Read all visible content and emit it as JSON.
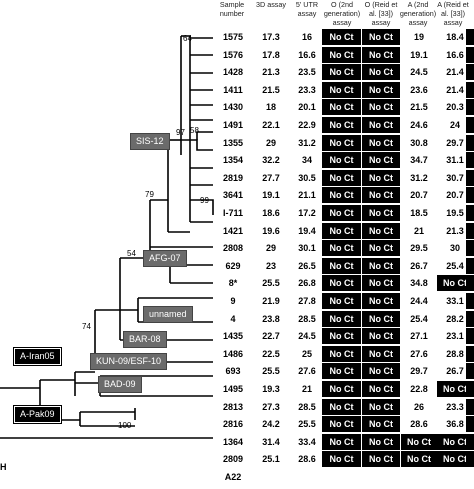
{
  "headers": {
    "sample_number": "Sample number",
    "assay_3d": "3D assay",
    "assay_5utr": "5' UTR assay",
    "assay_o_2nd": "O (2nd generation) assay",
    "assay_o_reid": "O (Reid et al. [33]) assay",
    "assay_a_2nd": "A (2nd generation) assay",
    "assay_a_reid": "A (Reid et al. [33]) assay"
  },
  "rows": [
    {
      "sample": "1575",
      "d3": "17.3",
      "utr": "16",
      "o2": "No Ct",
      "or": "No Ct",
      "a2": "19",
      "ar": "18.4",
      "last_dark": true
    },
    {
      "sample": "1576",
      "d3": "17.8",
      "utr": "16.6",
      "o2": "No Ct",
      "or": "No Ct",
      "a2": "19.1",
      "ar": "16.6",
      "last_dark": true
    },
    {
      "sample": "1428",
      "d3": "21.3",
      "utr": "23.5",
      "o2": "No Ct",
      "or": "No Ct",
      "a2": "24.5",
      "ar": "21.4",
      "last_dark": true
    },
    {
      "sample": "1411",
      "d3": "21.5",
      "utr": "23.3",
      "o2": "No Ct",
      "or": "No Ct",
      "a2": "23.6",
      "ar": "21.4",
      "last_dark": true
    },
    {
      "sample": "1430",
      "d3": "18",
      "utr": "20.1",
      "o2": "No Ct",
      "or": "No Ct",
      "a2": "21.5",
      "ar": "20.3",
      "last_dark": true
    },
    {
      "sample": "1491",
      "d3": "22.1",
      "utr": "22.9",
      "o2": "No Ct",
      "or": "No Ct",
      "a2": "24.6",
      "ar": "24",
      "last_dark": true
    },
    {
      "sample": "1355",
      "d3": "29",
      "utr": "31.2",
      "o2": "No Ct",
      "or": "No Ct",
      "a2": "30.8",
      "ar": "29.7",
      "last_dark": true
    },
    {
      "sample": "1354",
      "d3": "32.2",
      "utr": "34",
      "o2": "No Ct",
      "or": "No Ct",
      "a2": "34.7",
      "ar": "31.1",
      "last_dark": true
    },
    {
      "sample": "2819",
      "d3": "27.7",
      "utr": "30.5",
      "o2": "No Ct",
      "or": "No Ct",
      "a2": "31.2",
      "ar": "30.7",
      "last_dark": true
    },
    {
      "sample": "3641",
      "d3": "19.1",
      "utr": "21.1",
      "o2": "No Ct",
      "or": "No Ct",
      "a2": "20.7",
      "ar": "20.7",
      "last_dark": true
    },
    {
      "sample": "I-711",
      "d3": "18.6",
      "utr": "17.2",
      "o2": "No Ct",
      "or": "No Ct",
      "a2": "18.5",
      "ar": "19.5",
      "last_dark": true
    },
    {
      "sample": "1421",
      "d3": "19.6",
      "utr": "19.4",
      "o2": "No Ct",
      "or": "No Ct",
      "a2": "21",
      "ar": "21.3",
      "last_dark": true
    },
    {
      "sample": "2808",
      "d3": "29",
      "utr": "30.1",
      "o2": "No Ct",
      "or": "No Ct",
      "a2": "29.5",
      "ar": "30",
      "last_dark": true
    },
    {
      "sample": "629",
      "d3": "23",
      "utr": "26.5",
      "o2": "No Ct",
      "or": "No Ct",
      "a2": "26.7",
      "ar": "25.4",
      "last_dark": true
    },
    {
      "sample": "8*",
      "d3": "25.5",
      "utr": "26.8",
      "o2": "No Ct",
      "or": "No Ct",
      "a2": "34.8",
      "ar": "No Ct",
      "last_dark": true
    },
    {
      "sample": "9",
      "d3": "21.9",
      "utr": "27.8",
      "o2": "No Ct",
      "or": "No Ct",
      "a2": "24.4",
      "ar": "33.1",
      "last_dark": true
    },
    {
      "sample": "4",
      "d3": "23.8",
      "utr": "28.5",
      "o2": "No Ct",
      "or": "No Ct",
      "a2": "25.4",
      "ar": "28.2",
      "last_dark": true
    },
    {
      "sample": "1435",
      "d3": "22.7",
      "utr": "24.5",
      "o2": "No Ct",
      "or": "No Ct",
      "a2": "27.1",
      "ar": "23.1",
      "last_dark": true
    },
    {
      "sample": "1486",
      "d3": "22.5",
      "utr": "25",
      "o2": "No Ct",
      "or": "No Ct",
      "a2": "27.6",
      "ar": "28.8",
      "last_dark": true
    },
    {
      "sample": "693",
      "d3": "25.5",
      "utr": "27.6",
      "o2": "No Ct",
      "or": "No Ct",
      "a2": "29.7",
      "ar": "26.7",
      "last_dark": true
    },
    {
      "sample": "1495",
      "d3": "19.3",
      "utr": "21",
      "o2": "No Ct",
      "or": "No Ct",
      "a2": "22.8",
      "ar": "No Ct",
      "last_dark": true
    },
    {
      "sample": "2813",
      "d3": "27.3",
      "utr": "28.5",
      "o2": "No Ct",
      "or": "No Ct",
      "a2": "26",
      "ar": "23.3",
      "last_dark": true
    },
    {
      "sample": "2816",
      "d3": "24.2",
      "utr": "25.5",
      "o2": "No Ct",
      "or": "No Ct",
      "a2": "28.6",
      "ar": "36.8",
      "last_dark": true
    },
    {
      "sample": "1364",
      "d3": "31.4",
      "utr": "33.4",
      "o2": "No Ct",
      "or": "No Ct",
      "a2": "No Ct",
      "ar": "No Ct",
      "last_dark": true
    },
    {
      "sample": "2809",
      "d3": "25.1",
      "utr": "28.6",
      "o2": "No Ct",
      "or": "No Ct",
      "a2": "No Ct",
      "ar": "No Ct",
      "last_dark": true
    },
    {
      "sample": "A22",
      "d3": "",
      "utr": "",
      "o2": "",
      "or": "",
      "a2": "",
      "ar": "",
      "last_dark": false
    }
  ],
  "tree": {
    "clades": {
      "sis12": "SIS-12",
      "afg07": "AFG-07",
      "unnamed": "unnamed",
      "bar08": "BAR-08",
      "kun09": "KUN-09/ESF-10",
      "bad09": "BAD-09",
      "iran05": "A-Iran05",
      "pak09": "A-Pak09"
    },
    "bootstrap": {
      "b64": "64",
      "b97": "97",
      "b58": "58",
      "b99": "99",
      "b79": "79",
      "b54": "54",
      "b74": "74",
      "b100": "100"
    }
  },
  "footnote_letter": "H"
}
